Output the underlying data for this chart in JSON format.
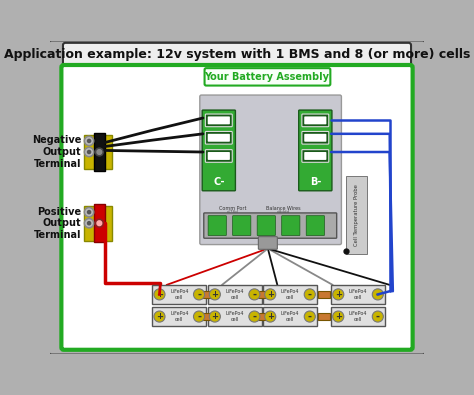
{
  "title": "Application example: 12v system with 1 BMS and 8 (or more) cells",
  "battery_assembly_label": "Your Battery Assembly",
  "neg_terminal_label": "Negative\nOutput\nTerminal",
  "pos_terminal_label": "Positive\nOutput\nTerminal",
  "cell_temp_label": "Cell Temperature Probe",
  "comm_port_label": "Comm Port",
  "balance_wires_label": "Balance Wires",
  "bg_outer": "#b0b0b0",
  "bg_inner": "#ffffff",
  "green_border": "#22aa22",
  "bms_body_color": "#c8c8d0",
  "bms_green": "#33aa33",
  "terminal_yellow": "#c8b400",
  "terminal_black": "#111111",
  "terminal_red": "#cc0000",
  "wire_black": "#111111",
  "wire_red": "#cc0000",
  "wire_blue": "#2244cc",
  "wire_gray": "#888888",
  "cell_bg": "#e0e0e0",
  "cell_border": "#555555",
  "cell_connector": "#c87830",
  "title_fontsize": 9,
  "label_fontsize": 7,
  "small_fontsize": 4.5
}
